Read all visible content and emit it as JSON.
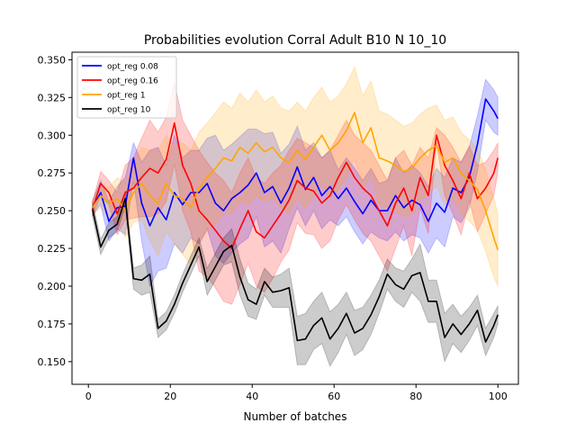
{
  "chart_data": {
    "type": "line",
    "title": "Probabilities evolution Corral Adult B10 N 10_10",
    "xlabel": "Number of batches",
    "ylabel": "",
    "xlim": [
      -4,
      105
    ],
    "ylim": [
      0.135,
      0.355
    ],
    "xticks": [
      0,
      20,
      40,
      60,
      80,
      100
    ],
    "xtick_labels": [
      "0",
      "20",
      "40",
      "60",
      "80",
      "100"
    ],
    "yticks": [
      0.15,
      0.175,
      0.2,
      0.225,
      0.25,
      0.275,
      0.3,
      0.325,
      0.35
    ],
    "ytick_labels": [
      "0.150",
      "0.175",
      "0.200",
      "0.225",
      "0.250",
      "0.275",
      "0.300",
      "0.325",
      "0.350"
    ],
    "grid": false,
    "legend_position": "top-left",
    "band_opacity": 0.2,
    "series": [
      {
        "name": "opt_reg 0.08",
        "color": "#0000ff",
        "x": [
          1,
          3,
          5,
          7,
          9,
          11,
          13,
          15,
          17,
          19,
          21,
          23,
          25,
          27,
          29,
          31,
          33,
          35,
          37,
          39,
          41,
          43,
          45,
          47,
          49,
          51,
          53,
          55,
          57,
          59,
          61,
          63,
          65,
          67,
          69,
          71,
          73,
          75,
          77,
          79,
          81,
          83,
          85,
          87,
          89,
          91,
          93,
          95,
          97,
          99,
          100
        ],
        "y": [
          0.252,
          0.262,
          0.243,
          0.252,
          0.253,
          0.285,
          0.255,
          0.24,
          0.252,
          0.244,
          0.262,
          0.254,
          0.262,
          0.262,
          0.268,
          0.255,
          0.25,
          0.258,
          0.262,
          0.267,
          0.275,
          0.262,
          0.266,
          0.255,
          0.265,
          0.279,
          0.264,
          0.272,
          0.26,
          0.266,
          0.258,
          0.265,
          0.256,
          0.248,
          0.257,
          0.25,
          0.25,
          0.26,
          0.252,
          0.257,
          0.254,
          0.243,
          0.255,
          0.249,
          0.265,
          0.262,
          0.272,
          0.294,
          0.324,
          0.316,
          0.311
        ],
        "upper": [
          0.257,
          0.27,
          0.256,
          0.266,
          0.272,
          0.295,
          0.282,
          0.29,
          0.292,
          0.28,
          0.3,
          0.285,
          0.29,
          0.29,
          0.298,
          0.3,
          0.29,
          0.294,
          0.299,
          0.304,
          0.304,
          0.301,
          0.302,
          0.288,
          0.294,
          0.306,
          0.29,
          0.295,
          0.285,
          0.29,
          0.277,
          0.285,
          0.278,
          0.27,
          0.278,
          0.268,
          0.27,
          0.285,
          0.275,
          0.28,
          0.275,
          0.266,
          0.278,
          0.272,
          0.285,
          0.282,
          0.292,
          0.313,
          0.337,
          0.33,
          0.325
        ],
        "lower": [
          0.247,
          0.254,
          0.23,
          0.238,
          0.234,
          0.27,
          0.23,
          0.2,
          0.21,
          0.212,
          0.228,
          0.222,
          0.232,
          0.228,
          0.238,
          0.22,
          0.215,
          0.222,
          0.228,
          0.232,
          0.246,
          0.226,
          0.23,
          0.222,
          0.238,
          0.252,
          0.24,
          0.25,
          0.238,
          0.244,
          0.24,
          0.246,
          0.236,
          0.228,
          0.236,
          0.232,
          0.23,
          0.236,
          0.23,
          0.234,
          0.232,
          0.222,
          0.232,
          0.226,
          0.246,
          0.242,
          0.252,
          0.276,
          0.31,
          0.302,
          0.3
        ]
      },
      {
        "name": "opt_reg 0.16",
        "color": "#ff0000",
        "x": [
          1,
          3,
          5,
          7,
          9,
          11,
          13,
          15,
          17,
          19,
          21,
          23,
          25,
          27,
          29,
          31,
          33,
          35,
          37,
          39,
          41,
          43,
          45,
          47,
          49,
          51,
          53,
          55,
          57,
          59,
          61,
          63,
          65,
          67,
          69,
          71,
          73,
          75,
          77,
          79,
          81,
          83,
          85,
          87,
          89,
          91,
          93,
          95,
          97,
          99,
          100
        ],
        "y": [
          0.251,
          0.268,
          0.262,
          0.248,
          0.262,
          0.265,
          0.272,
          0.278,
          0.275,
          0.284,
          0.308,
          0.28,
          0.268,
          0.25,
          0.244,
          0.237,
          0.23,
          0.225,
          0.238,
          0.25,
          0.236,
          0.232,
          0.24,
          0.248,
          0.257,
          0.27,
          0.265,
          0.263,
          0.255,
          0.26,
          0.272,
          0.282,
          0.272,
          0.265,
          0.26,
          0.25,
          0.24,
          0.255,
          0.265,
          0.25,
          0.272,
          0.26,
          0.3,
          0.28,
          0.27,
          0.258,
          0.275,
          0.258,
          0.265,
          0.275,
          0.285
        ],
        "upper": [
          0.256,
          0.276,
          0.27,
          0.262,
          0.28,
          0.285,
          0.298,
          0.31,
          0.302,
          0.312,
          0.335,
          0.31,
          0.3,
          0.29,
          0.282,
          0.275,
          0.27,
          0.262,
          0.275,
          0.285,
          0.272,
          0.268,
          0.275,
          0.28,
          0.29,
          0.298,
          0.295,
          0.292,
          0.285,
          0.29,
          0.3,
          0.31,
          0.3,
          0.295,
          0.29,
          0.28,
          0.27,
          0.285,
          0.29,
          0.28,
          0.292,
          0.285,
          0.305,
          0.3,
          0.292,
          0.282,
          0.293,
          0.28,
          0.282,
          0.29,
          0.295
        ],
        "lower": [
          0.246,
          0.26,
          0.254,
          0.234,
          0.244,
          0.245,
          0.246,
          0.246,
          0.248,
          0.256,
          0.281,
          0.25,
          0.236,
          0.21,
          0.206,
          0.199,
          0.19,
          0.188,
          0.201,
          0.215,
          0.2,
          0.196,
          0.205,
          0.216,
          0.224,
          0.242,
          0.235,
          0.234,
          0.225,
          0.23,
          0.244,
          0.254,
          0.244,
          0.235,
          0.23,
          0.22,
          0.21,
          0.225,
          0.24,
          0.22,
          0.252,
          0.235,
          0.295,
          0.26,
          0.248,
          0.234,
          0.257,
          0.236,
          0.248,
          0.26,
          0.275
        ]
      },
      {
        "name": "opt_reg 1",
        "color": "#ffa500",
        "x": [
          1,
          3,
          5,
          7,
          9,
          11,
          13,
          15,
          17,
          19,
          21,
          23,
          25,
          27,
          29,
          31,
          33,
          35,
          37,
          39,
          41,
          43,
          45,
          47,
          49,
          51,
          53,
          55,
          57,
          59,
          61,
          63,
          65,
          67,
          69,
          71,
          73,
          75,
          77,
          79,
          81,
          83,
          85,
          87,
          89,
          91,
          93,
          95,
          97,
          99,
          100
        ],
        "y": [
          0.252,
          0.26,
          0.255,
          0.258,
          0.25,
          0.262,
          0.268,
          0.26,
          0.255,
          0.268,
          0.26,
          0.258,
          0.252,
          0.265,
          0.272,
          0.278,
          0.285,
          0.283,
          0.292,
          0.288,
          0.295,
          0.289,
          0.292,
          0.285,
          0.282,
          0.29,
          0.284,
          0.292,
          0.3,
          0.29,
          0.295,
          0.303,
          0.315,
          0.295,
          0.305,
          0.285,
          0.283,
          0.28,
          0.276,
          0.278,
          0.285,
          0.29,
          0.293,
          0.282,
          0.285,
          0.275,
          0.27,
          0.264,
          0.25,
          0.232,
          0.224
        ],
        "upper": [
          0.257,
          0.268,
          0.265,
          0.272,
          0.268,
          0.282,
          0.292,
          0.29,
          0.29,
          0.3,
          0.292,
          0.295,
          0.29,
          0.302,
          0.308,
          0.315,
          0.322,
          0.318,
          0.328,
          0.322,
          0.33,
          0.322,
          0.326,
          0.318,
          0.316,
          0.322,
          0.316,
          0.325,
          0.332,
          0.322,
          0.326,
          0.334,
          0.345,
          0.326,
          0.336,
          0.316,
          0.314,
          0.31,
          0.306,
          0.308,
          0.314,
          0.318,
          0.32,
          0.31,
          0.312,
          0.302,
          0.297,
          0.291,
          0.277,
          0.258,
          0.248
        ],
        "lower": [
          0.247,
          0.252,
          0.245,
          0.244,
          0.232,
          0.242,
          0.244,
          0.23,
          0.22,
          0.236,
          0.228,
          0.221,
          0.214,
          0.228,
          0.236,
          0.241,
          0.248,
          0.248,
          0.256,
          0.254,
          0.26,
          0.256,
          0.258,
          0.252,
          0.248,
          0.258,
          0.252,
          0.259,
          0.268,
          0.258,
          0.264,
          0.272,
          0.285,
          0.264,
          0.274,
          0.254,
          0.252,
          0.25,
          0.246,
          0.248,
          0.256,
          0.262,
          0.266,
          0.254,
          0.258,
          0.248,
          0.243,
          0.237,
          0.223,
          0.206,
          0.2
        ]
      },
      {
        "name": "opt_reg 10",
        "color": "#000000",
        "x": [
          1,
          3,
          5,
          7,
          9,
          11,
          13,
          15,
          17,
          19,
          21,
          23,
          25,
          27,
          29,
          31,
          33,
          35,
          37,
          39,
          41,
          43,
          45,
          47,
          49,
          51,
          53,
          55,
          57,
          59,
          61,
          63,
          65,
          67,
          69,
          71,
          73,
          75,
          77,
          79,
          81,
          83,
          85,
          87,
          89,
          91,
          93,
          95,
          97,
          99,
          100
        ],
        "y": [
          0.251,
          0.226,
          0.237,
          0.241,
          0.258,
          0.205,
          0.204,
          0.208,
          0.172,
          0.177,
          0.188,
          0.202,
          0.214,
          0.226,
          0.203,
          0.213,
          0.223,
          0.227,
          0.206,
          0.191,
          0.188,
          0.203,
          0.196,
          0.197,
          0.199,
          0.164,
          0.165,
          0.174,
          0.179,
          0.165,
          0.172,
          0.182,
          0.169,
          0.172,
          0.181,
          0.193,
          0.208,
          0.201,
          0.198,
          0.207,
          0.209,
          0.19,
          0.19,
          0.166,
          0.175,
          0.168,
          0.175,
          0.184,
          0.163,
          0.174,
          0.181
        ],
        "upper": [
          0.256,
          0.231,
          0.242,
          0.246,
          0.263,
          0.212,
          0.214,
          0.22,
          0.178,
          0.183,
          0.194,
          0.208,
          0.22,
          0.232,
          0.212,
          0.222,
          0.232,
          0.238,
          0.218,
          0.202,
          0.198,
          0.212,
          0.206,
          0.208,
          0.212,
          0.18,
          0.182,
          0.19,
          0.196,
          0.183,
          0.188,
          0.196,
          0.184,
          0.186,
          0.194,
          0.204,
          0.218,
          0.212,
          0.21,
          0.218,
          0.228,
          0.204,
          0.204,
          0.182,
          0.188,
          0.18,
          0.186,
          0.194,
          0.172,
          0.182,
          0.187
        ],
        "lower": [
          0.246,
          0.221,
          0.232,
          0.236,
          0.253,
          0.198,
          0.194,
          0.196,
          0.166,
          0.171,
          0.182,
          0.196,
          0.208,
          0.22,
          0.194,
          0.204,
          0.214,
          0.216,
          0.194,
          0.18,
          0.178,
          0.194,
          0.186,
          0.186,
          0.186,
          0.148,
          0.148,
          0.158,
          0.162,
          0.147,
          0.156,
          0.168,
          0.154,
          0.158,
          0.168,
          0.182,
          0.198,
          0.19,
          0.186,
          0.196,
          0.19,
          0.176,
          0.176,
          0.15,
          0.162,
          0.156,
          0.164,
          0.174,
          0.154,
          0.166,
          0.175
        ]
      }
    ]
  }
}
